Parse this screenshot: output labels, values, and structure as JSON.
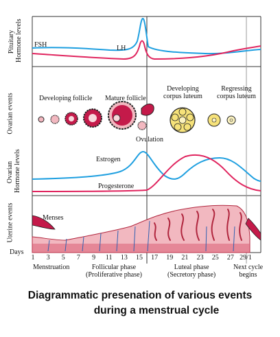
{
  "side_labels": {
    "pituitary": "Pituitary\nHormone levels",
    "ovarian_events": "Ovarian events",
    "ovarian_hormones": "Ovarian\nHormone levels",
    "uterine": "Uterine events"
  },
  "hormones": {
    "fsh": "FSH",
    "lh": "LH",
    "estrogen": "Estrogen",
    "progesterone": "Progesterone"
  },
  "ovarian": {
    "developing_follicle": "Developing follicle",
    "mature_follicle": "Mature follicle",
    "developing_corpus_luteum": "Developing\ncorpus luteum",
    "regressing_corpus_luteum": "Regressing\ncorpus luteum",
    "ovulation": "Ovulation"
  },
  "uterine": {
    "menses": "Menses"
  },
  "days": {
    "label": "Days",
    "ticks": [
      "1",
      "3",
      "5",
      "7",
      "9",
      "11",
      "13",
      "15",
      "17",
      "19",
      "21",
      "23",
      "25",
      "27",
      "29/1"
    ]
  },
  "phases": {
    "menstruation": "Menstruation",
    "follicular": "Follicular phase\n(Proliferative phase)",
    "luteal": "Luteal phase\n(Secretory phase)",
    "next_cycle": "Next cycle\nbegins"
  },
  "caption": {
    "line1": "Diagrammatic presenation of various events",
    "line2": "during a menstrual cycle"
  },
  "colors": {
    "blue": "#1e9fe0",
    "red": "#e0245e",
    "frame": "#333333",
    "tissue": "#f2b8c0",
    "tissue_dark": "#c41a4a"
  }
}
